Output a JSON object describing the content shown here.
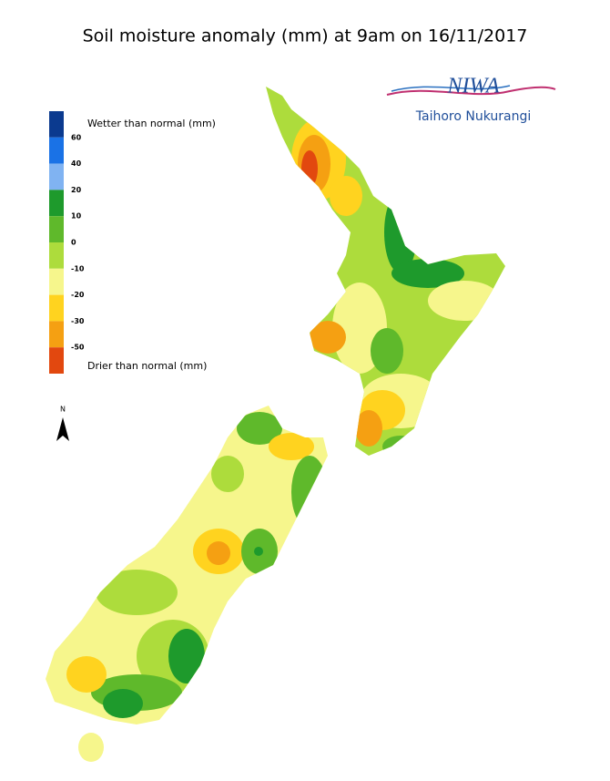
{
  "title": "Soil moisture anomaly (mm) at 9am on 16/11/2017",
  "logo": {
    "name": "NIWA",
    "subtitle": "Taihoro Nukurangi"
  },
  "legend": {
    "top_label": "Wetter than normal (mm)",
    "bottom_label": "Drier than normal (mm)",
    "colors": [
      "#0b3a8f",
      "#1a72e6",
      "#80b3f2",
      "#1e9a2c",
      "#5fb92b",
      "#addc3c",
      "#f6f68c",
      "#ffd31f",
      "#f5a012",
      "#e2480f"
    ],
    "ticks": [
      60,
      40,
      20,
      10,
      0,
      -10,
      -20,
      -30,
      -50
    ]
  },
  "north_label": "N"
}
